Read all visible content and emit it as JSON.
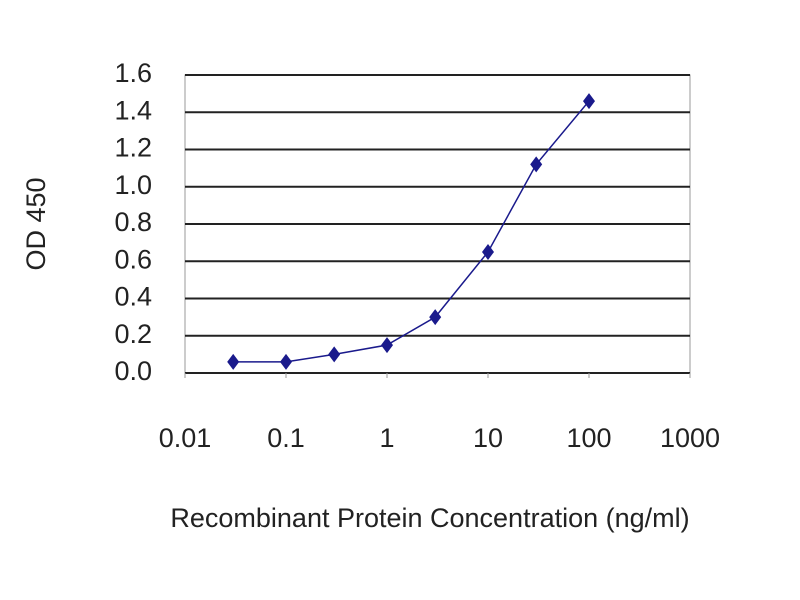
{
  "chart_data": {
    "type": "line",
    "xlabel": "Recombinant Protein Concentration (ng/ml)",
    "ylabel": "OD 450",
    "x": [
      0.03,
      0.1,
      0.3,
      1,
      3,
      10,
      30,
      100
    ],
    "series": [
      {
        "color": "#1a1a8c",
        "values": [
          0.06,
          0.06,
          0.1,
          0.15,
          0.3,
          0.65,
          1.12,
          1.46
        ]
      }
    ],
    "xscale": "log",
    "xlim": [
      0.01,
      1000
    ],
    "xticks": [
      0.01,
      0.1,
      1,
      10,
      100,
      1000
    ],
    "ylim": [
      0,
      1.6
    ],
    "yticks": [
      {
        "value": 0,
        "label": "0.0"
      },
      0.2,
      0.4,
      0.6,
      0.8,
      {
        "value": 1,
        "label": "1.0"
      },
      1.2,
      1.4,
      1.6
    ],
    "grid": true
  }
}
